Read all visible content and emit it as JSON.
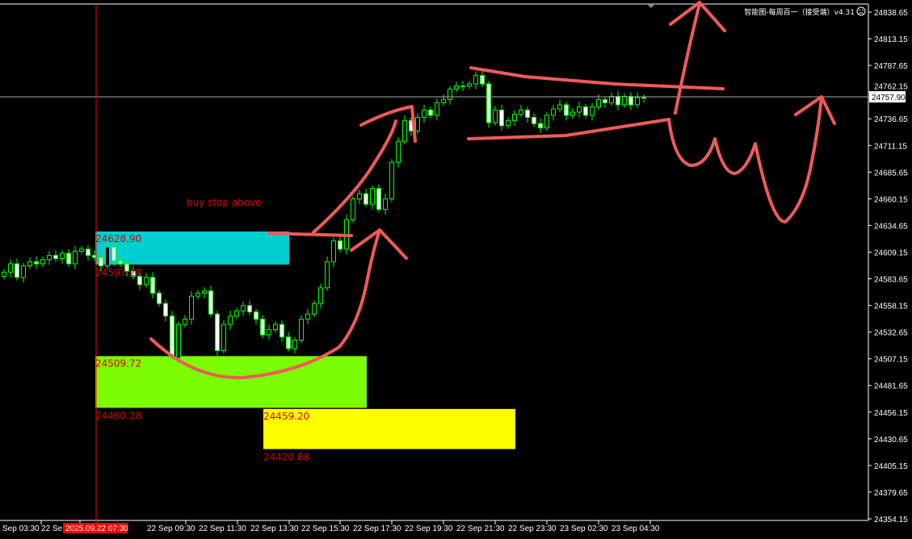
{
  "header": {
    "indicator_title": "智能图-每周百一（接受端）v4.31",
    "status_icon": "sad-face-icon"
  },
  "colors": {
    "background": "#000000",
    "candle": "#00ff00",
    "bear_body": "#ffffff",
    "bull_body": "#000000",
    "cursor_line": "#ff0000",
    "drawing": "#f05a5a",
    "label": "#e00000"
  },
  "annotation": {
    "text": "buy stop above"
  },
  "cursor": {
    "time_label": "2025.09.22 07:30"
  },
  "current_price": "24757.90",
  "chart_data": {
    "type": "candlestick",
    "timeframe_minutes": 15,
    "ylim": [
      24354.15,
      24838.65
    ],
    "y_ticks": [
      "24838.65",
      "24813.15",
      "24787.65",
      "24762.15",
      "24736.65",
      "24711.15",
      "24685.65",
      "24660.15",
      "24634.65",
      "24609.15",
      "24583.65",
      "24558.15",
      "24532.65",
      "24507.15",
      "24481.65",
      "24456.15",
      "24430.65",
      "24405.15",
      "24379.65",
      "24354.15"
    ],
    "x_ticks": [
      "Sep 03:30",
      "22 Se",
      "22 Sep 09:30",
      "22 Sep 11:30",
      "22 Sep 13:30",
      "22 Sep 15:30",
      "22 Sep 17:30",
      "22 Sep 19:30",
      "22 Sep 21:30",
      "22 Sep 23:30",
      "23 Sep 02:30",
      "23 Sep 04:30"
    ],
    "close": [
      24590,
      24598,
      24585,
      24596,
      24600,
      24598,
      24602,
      24606,
      24603,
      24608,
      24598,
      24610,
      24612,
      24606,
      24604,
      24596,
      24614,
      24601,
      24598,
      24591,
      24586,
      24578,
      24585,
      24570,
      24560,
      24548,
      24508,
      24540,
      24545,
      24567,
      24570,
      24572,
      24550,
      24515,
      24540,
      24548,
      24553,
      24558,
      24552,
      24545,
      24530,
      24535,
      24540,
      24528,
      24517,
      24525,
      24545,
      24550,
      24560,
      24575,
      24600,
      24620,
      24612,
      24640,
      24660,
      24665,
      24655,
      24670,
      24650,
      24660,
      24695,
      24715,
      24735,
      24725,
      24738,
      24745,
      24740,
      24752,
      24755,
      24765,
      24768,
      24768,
      24770,
      24778,
      24770,
      24733,
      24745,
      24730,
      24735,
      24741,
      24745,
      24738,
      24732,
      24728,
      24740,
      24746,
      24750,
      24740,
      24743,
      24748,
      24740,
      24748,
      24755,
      24752,
      24758,
      24750,
      24758,
      24750,
      24757,
      24757
    ],
    "zones": [
      {
        "name": "cyan",
        "top": "24628.90",
        "bottom": "24597.28",
        "color": "#00ced1"
      },
      {
        "name": "green",
        "top": "24509.72",
        "bottom": "24460.28",
        "color": "#7cfc00"
      },
      {
        "name": "yellow",
        "top": "24459.20",
        "bottom": "24420.88",
        "color": "#ffff00"
      }
    ]
  }
}
